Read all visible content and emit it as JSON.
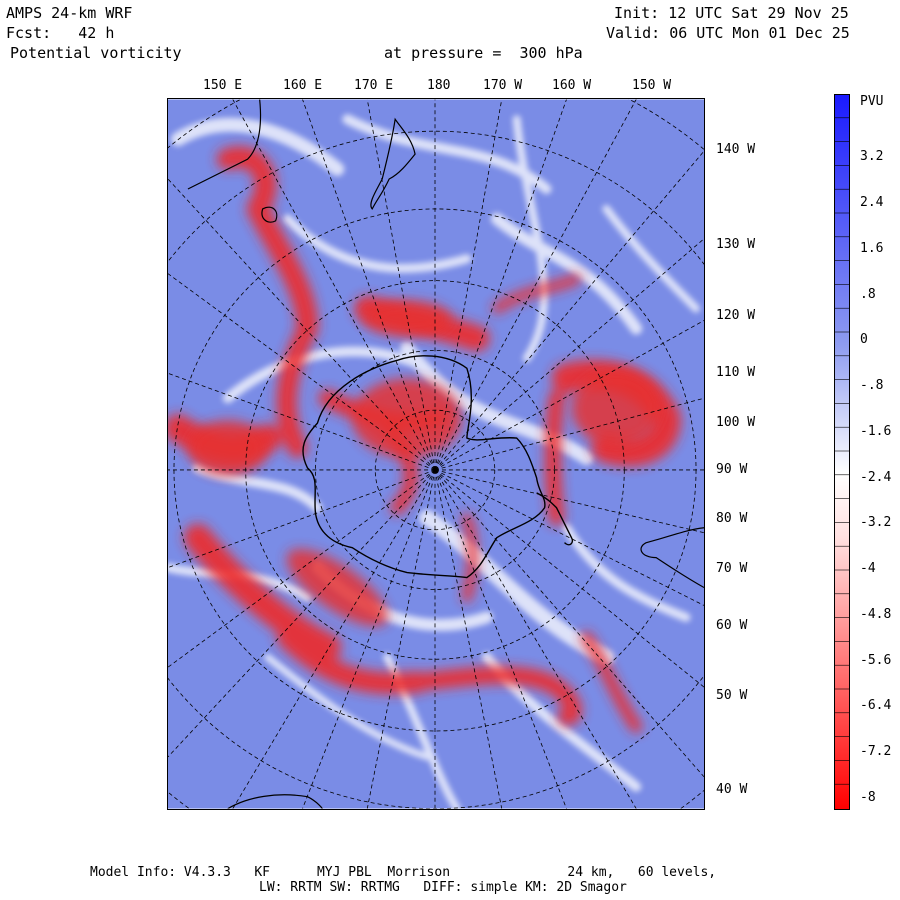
{
  "header": {
    "model": "AMPS 24-km WRF",
    "forecast": "Fcst:   42 h",
    "field": "Potential vorticity",
    "level": "at pressure =  300 hPa",
    "init": "Init: 12 UTC Sat 29 Nov 25",
    "valid": "Valid: 06 UTC Mon 01 Dec 25"
  },
  "map": {
    "lon_labels_top": [
      "150 E",
      "160 E",
      "170 E",
      "180",
      "170 W",
      "160 W",
      "150 W"
    ],
    "lon_labels_right": [
      "140 W",
      "130 W",
      "120 W",
      "110 W",
      "100 W",
      "90 W",
      "80 W",
      "70 W",
      "60 W",
      "50 W",
      "40 W"
    ]
  },
  "legend": {
    "title": "PVU",
    "labels": [
      "3.2",
      "2.4",
      "1.6",
      ".8",
      "0",
      "-.8",
      "-1.6",
      "-2.4",
      "-3.2",
      "-4",
      "-4.8",
      "-5.6",
      "-6.4",
      "-7.2",
      "-8"
    ],
    "colors": {
      "positive": "#1a1aff",
      "neutral": "#ffffff",
      "negative": "#ff0000",
      "field_background": "#7a8ce6"
    }
  },
  "footer": {
    "line1": "Model Info: V4.3.3   KF      MYJ PBL  Morrison               24 km,   60 levels,",
    "line2": "LW: RRTM SW: RRTMG   DIFF: simple KM: 2D Smagor"
  }
}
